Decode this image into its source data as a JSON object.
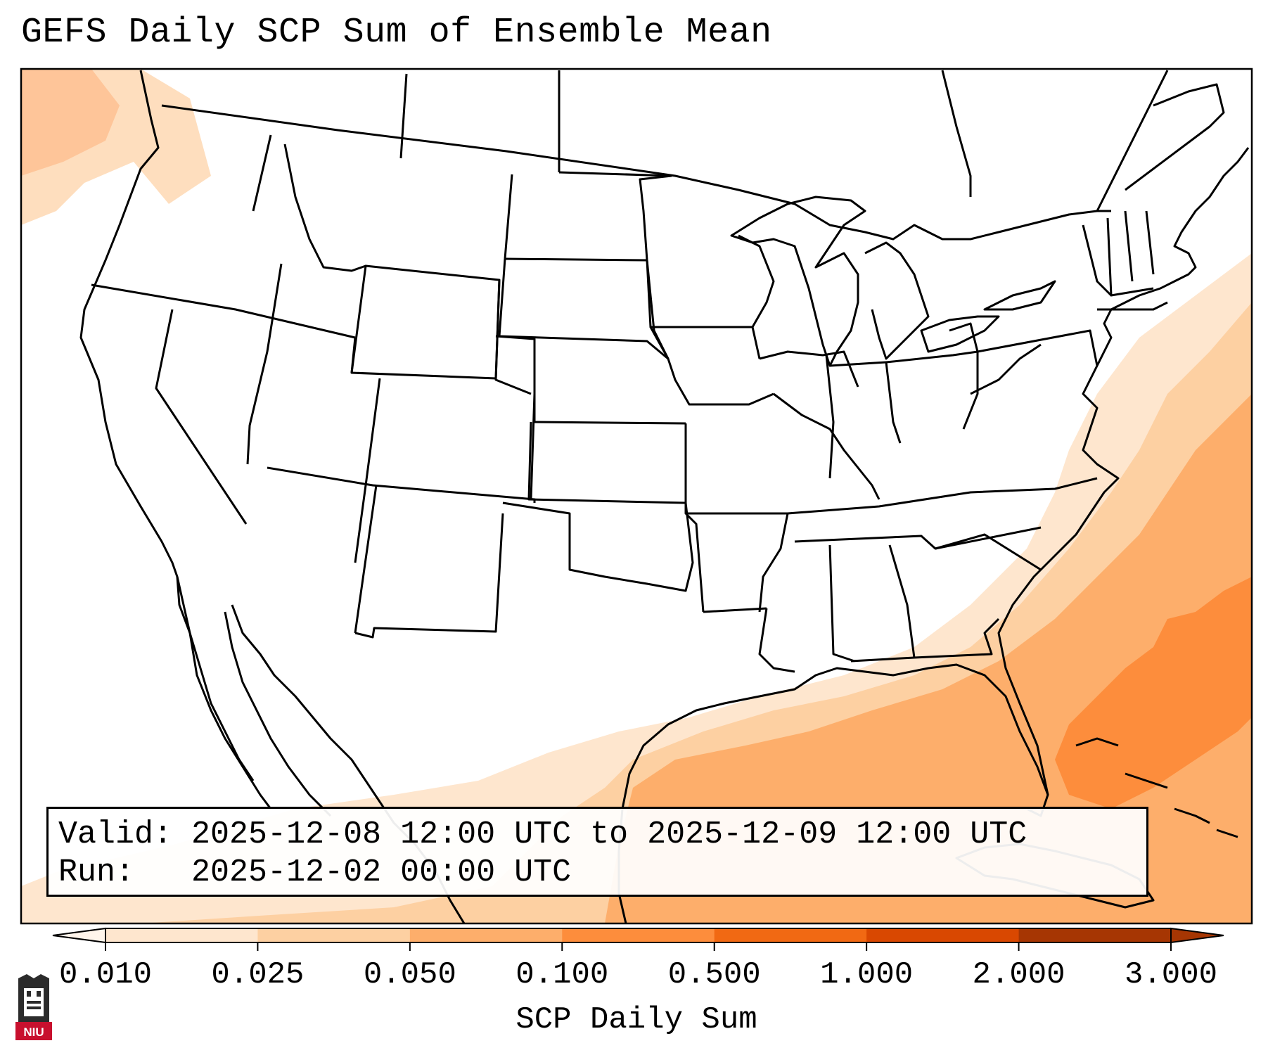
{
  "title": "GEFS Daily SCP Sum of Ensemble Mean",
  "info": {
    "valid_label": "Valid:",
    "valid_value": "2025-12-08 12:00 UTC to 2025-12-09 12:00 UTC",
    "run_label": "Run:",
    "run_value": "2025-12-02 00:00 UTC"
  },
  "colorbar": {
    "label": "SCP Daily Sum",
    "ticks": [
      "0.010",
      "0.025",
      "0.050",
      "0.100",
      "0.500",
      "1.000",
      "2.000",
      "3.000"
    ],
    "colors": [
      "#fff5eb",
      "#fee6ce",
      "#fdd0a2",
      "#fdae6b",
      "#fd8d3c",
      "#f16913",
      "#d94801",
      "#a63603"
    ],
    "extend": "both"
  },
  "logo": {
    "text": "NIU",
    "color": "#c8102e"
  },
  "colors": {
    "accent": "#fd8d3c"
  }
}
